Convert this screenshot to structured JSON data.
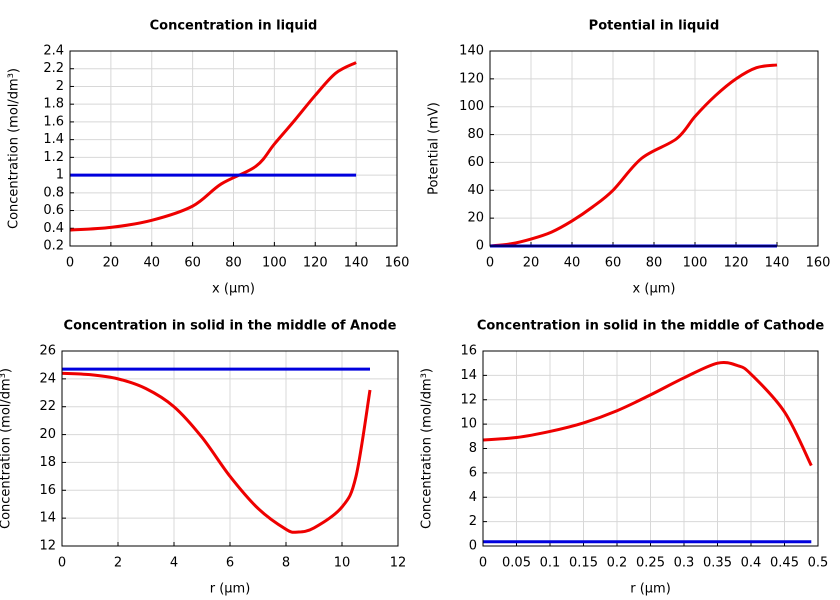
{
  "chart_data": [
    {
      "type": "line",
      "title": "Concentration in liquid",
      "xlabel": "x (µm)",
      "ylabel": "Concentration (mol/dm³)",
      "x": [
        0,
        20,
        40,
        60,
        74,
        91,
        100,
        110,
        120,
        130,
        140
      ],
      "series": [
        {
          "color": "#ee0000",
          "values": [
            0.38,
            0.41,
            0.49,
            0.65,
            0.9,
            1.1,
            1.35,
            1.62,
            1.9,
            2.15,
            2.27
          ]
        },
        {
          "color": "#0000dd",
          "values": [
            1,
            1,
            1,
            1,
            1,
            1,
            1,
            1,
            1,
            1,
            1
          ]
        }
      ],
      "xlim": [
        0,
        160
      ],
      "xticks": [
        0,
        20,
        40,
        60,
        80,
        100,
        120,
        140,
        160
      ],
      "ylim": [
        0.2,
        2.4
      ],
      "yticks": [
        0.2,
        0.4,
        0.6,
        0.8,
        1,
        1.2,
        1.4,
        1.6,
        1.8,
        2,
        2.2,
        2.4
      ],
      "grid": true
    },
    {
      "type": "line",
      "title": "Potential in liquid",
      "xlabel": "x (µm)",
      "ylabel": "Potential (mV)",
      "x": [
        0,
        10,
        20,
        30,
        40,
        50,
        60,
        74,
        91,
        100,
        110,
        120,
        130,
        140
      ],
      "series": [
        {
          "color": "#ee0000",
          "values": [
            0,
            1.5,
            5,
            10,
            18,
            28,
            40,
            63,
            77,
            93,
            108,
            120,
            128,
            130
          ]
        },
        {
          "color": "#0000dd",
          "values": [
            0,
            0,
            0,
            0,
            0,
            0,
            0,
            0,
            0,
            0,
            0,
            0,
            0,
            0
          ]
        }
      ],
      "xlim": [
        0,
        160
      ],
      "xticks": [
        0,
        20,
        40,
        60,
        80,
        100,
        120,
        140,
        160
      ],
      "ylim": [
        0,
        140
      ],
      "yticks": [
        0,
        20,
        40,
        60,
        80,
        100,
        120,
        140
      ],
      "grid": true
    },
    {
      "type": "line",
      "title": "Concentration in solid in the middle of Anode",
      "xlabel": "r (µm)",
      "ylabel": "Concentration (mol/dm³)",
      "x": [
        0,
        1,
        2,
        3,
        4,
        5,
        6,
        7,
        8,
        8.4,
        9,
        10,
        10.5,
        11
      ],
      "series": [
        {
          "color": "#ee0000",
          "values": [
            24.4,
            24.3,
            24.0,
            23.3,
            22.0,
            19.8,
            17.0,
            14.7,
            13.2,
            13.0,
            13.3,
            14.8,
            17,
            23.2
          ]
        },
        {
          "color": "#0000dd",
          "values": [
            24.7,
            24.7,
            24.7,
            24.7,
            24.7,
            24.7,
            24.7,
            24.7,
            24.7,
            24.7,
            24.7,
            24.7,
            24.7,
            24.7
          ]
        }
      ],
      "xlim": [
        0,
        12
      ],
      "xticks": [
        0,
        2,
        4,
        6,
        8,
        10,
        12
      ],
      "ylim": [
        12,
        26
      ],
      "yticks": [
        12,
        14,
        16,
        18,
        20,
        22,
        24,
        26
      ],
      "grid": true
    },
    {
      "type": "line",
      "title": "Concentration in solid in the middle of Cathode",
      "xlabel": "r (µm)",
      "ylabel": "Concentration (mol/dm³)",
      "x": [
        0,
        0.05,
        0.1,
        0.15,
        0.2,
        0.25,
        0.3,
        0.35,
        0.38,
        0.4,
        0.45,
        0.49
      ],
      "series": [
        {
          "color": "#ee0000",
          "values": [
            8.7,
            8.9,
            9.4,
            10.1,
            11.1,
            12.4,
            13.8,
            15.0,
            14.8,
            14.1,
            11.0,
            6.6
          ]
        },
        {
          "color": "#0000dd",
          "values": [
            0.35,
            0.35,
            0.35,
            0.35,
            0.35,
            0.35,
            0.35,
            0.35,
            0.35,
            0.35,
            0.35,
            0.35
          ]
        }
      ],
      "xlim": [
        0,
        0.5
      ],
      "xticks": [
        0,
        0.05,
        0.1,
        0.15,
        0.2,
        0.25,
        0.3,
        0.35,
        0.4,
        0.45,
        0.5
      ],
      "ylim": [
        0,
        16
      ],
      "yticks": [
        0,
        2,
        4,
        6,
        8,
        10,
        12,
        14,
        16
      ],
      "grid": true
    }
  ]
}
